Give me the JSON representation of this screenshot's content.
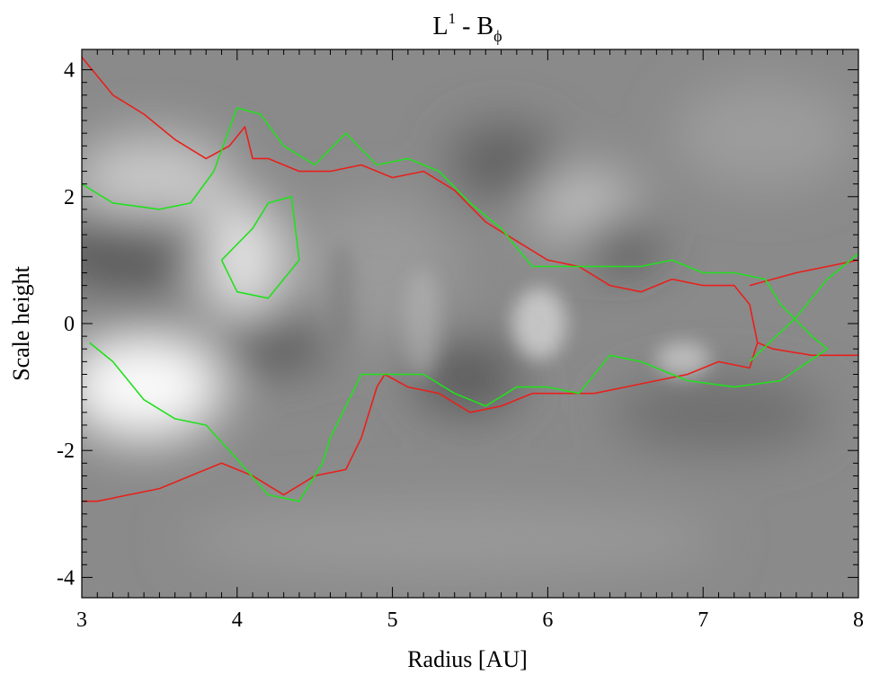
{
  "chart_data": {
    "type": "contour",
    "title": [
      "L",
      "1",
      " - B",
      "ϕ"
    ],
    "xlabel": "Radius [AU]",
    "ylabel": "Scale height",
    "xlim": [
      3,
      8
    ],
    "ylim": [
      -4.32,
      4.32
    ],
    "xticks": [
      3,
      4,
      5,
      6,
      7,
      8
    ],
    "yticks": [
      -4,
      -2,
      0,
      2,
      4
    ],
    "contours": [
      {
        "color": "#e8201c",
        "x": [
          3.0,
          3.2,
          3.4,
          3.6,
          3.8,
          3.95,
          4.05,
          4.1,
          4.2,
          4.4,
          4.6,
          4.8,
          5.0,
          5.2,
          5.4,
          5.6,
          5.8,
          6.0,
          6.2,
          6.4,
          6.6,
          6.8,
          7.0,
          7.2,
          7.3,
          7.35,
          7.3,
          7.1,
          6.9,
          6.7,
          6.5,
          6.3,
          6.1,
          5.9,
          5.7,
          5.5,
          5.3,
          5.1,
          4.95,
          4.9,
          4.8,
          4.7,
          4.5,
          4.3,
          4.1,
          3.9,
          3.7,
          3.5,
          3.3,
          3.1,
          3.0
        ],
        "y": [
          4.2,
          3.6,
          3.3,
          2.9,
          2.6,
          2.8,
          3.1,
          2.6,
          2.6,
          2.4,
          2.4,
          2.5,
          2.3,
          2.4,
          2.1,
          1.6,
          1.3,
          1.0,
          0.9,
          0.6,
          0.5,
          0.7,
          0.6,
          0.6,
          0.3,
          -0.3,
          -0.7,
          -0.6,
          -0.8,
          -0.9,
          -1.0,
          -1.1,
          -1.1,
          -1.1,
          -1.3,
          -1.4,
          -1.1,
          -1.0,
          -0.8,
          -1.0,
          -1.8,
          -2.3,
          -2.4,
          -2.7,
          -2.4,
          -2.2,
          -2.4,
          -2.6,
          -2.7,
          -2.8,
          -2.8
        ]
      },
      {
        "color": "#e8201c",
        "x": [
          7.3,
          7.6,
          7.8,
          8.0
        ],
        "y": [
          0.6,
          0.8,
          0.9,
          1.0
        ]
      },
      {
        "color": "#e8201c",
        "x": [
          7.35,
          7.45,
          7.7,
          8.0
        ],
        "y": [
          -0.3,
          -0.4,
          -0.5,
          -0.5
        ]
      },
      {
        "color": "#22e01e",
        "x": [
          3.0,
          3.2,
          3.5,
          3.7,
          3.85,
          4.0,
          4.15,
          4.3,
          4.5,
          4.7,
          4.9,
          5.1,
          5.3,
          5.5,
          5.7,
          5.9,
          6.2,
          6.4,
          6.6,
          6.8,
          7.0,
          7.2,
          7.4,
          7.5,
          7.7,
          7.8,
          7.5,
          7.2,
          6.9,
          6.6,
          6.4,
          6.2,
          6.0,
          5.8,
          5.6,
          5.4,
          5.2,
          5.0,
          4.8,
          4.7,
          4.6,
          4.55,
          4.4,
          4.2,
          3.95,
          3.8,
          3.6,
          3.4,
          3.2,
          3.05
        ],
        "y": [
          2.2,
          1.9,
          1.8,
          1.9,
          2.4,
          3.4,
          3.3,
          2.8,
          2.5,
          3.0,
          2.5,
          2.6,
          2.4,
          1.9,
          1.5,
          0.9,
          0.9,
          0.9,
          0.9,
          1.0,
          0.8,
          0.8,
          0.7,
          0.3,
          -0.2,
          -0.4,
          -0.9,
          -1.0,
          -0.9,
          -0.6,
          -0.5,
          -1.1,
          -1.0,
          -1.0,
          -1.3,
          -1.1,
          -0.8,
          -0.8,
          -0.8,
          -1.3,
          -1.8,
          -2.2,
          -2.8,
          -2.7,
          -2.0,
          -1.6,
          -1.5,
          -1.2,
          -0.6,
          -0.3
        ]
      },
      {
        "color": "#22e01e",
        "x": [
          7.3,
          7.6,
          7.8,
          8.0
        ],
        "y": [
          -0.6,
          0.1,
          0.7,
          1.1
        ]
      },
      {
        "color": "#22e01e",
        "x": [
          3.9,
          4.1,
          4.2,
          4.35,
          4.4,
          4.2,
          4.0,
          3.9
        ],
        "y": [
          1.0,
          1.5,
          1.9,
          2.0,
          1.0,
          0.4,
          0.5,
          1.0
        ]
      }
    ]
  }
}
